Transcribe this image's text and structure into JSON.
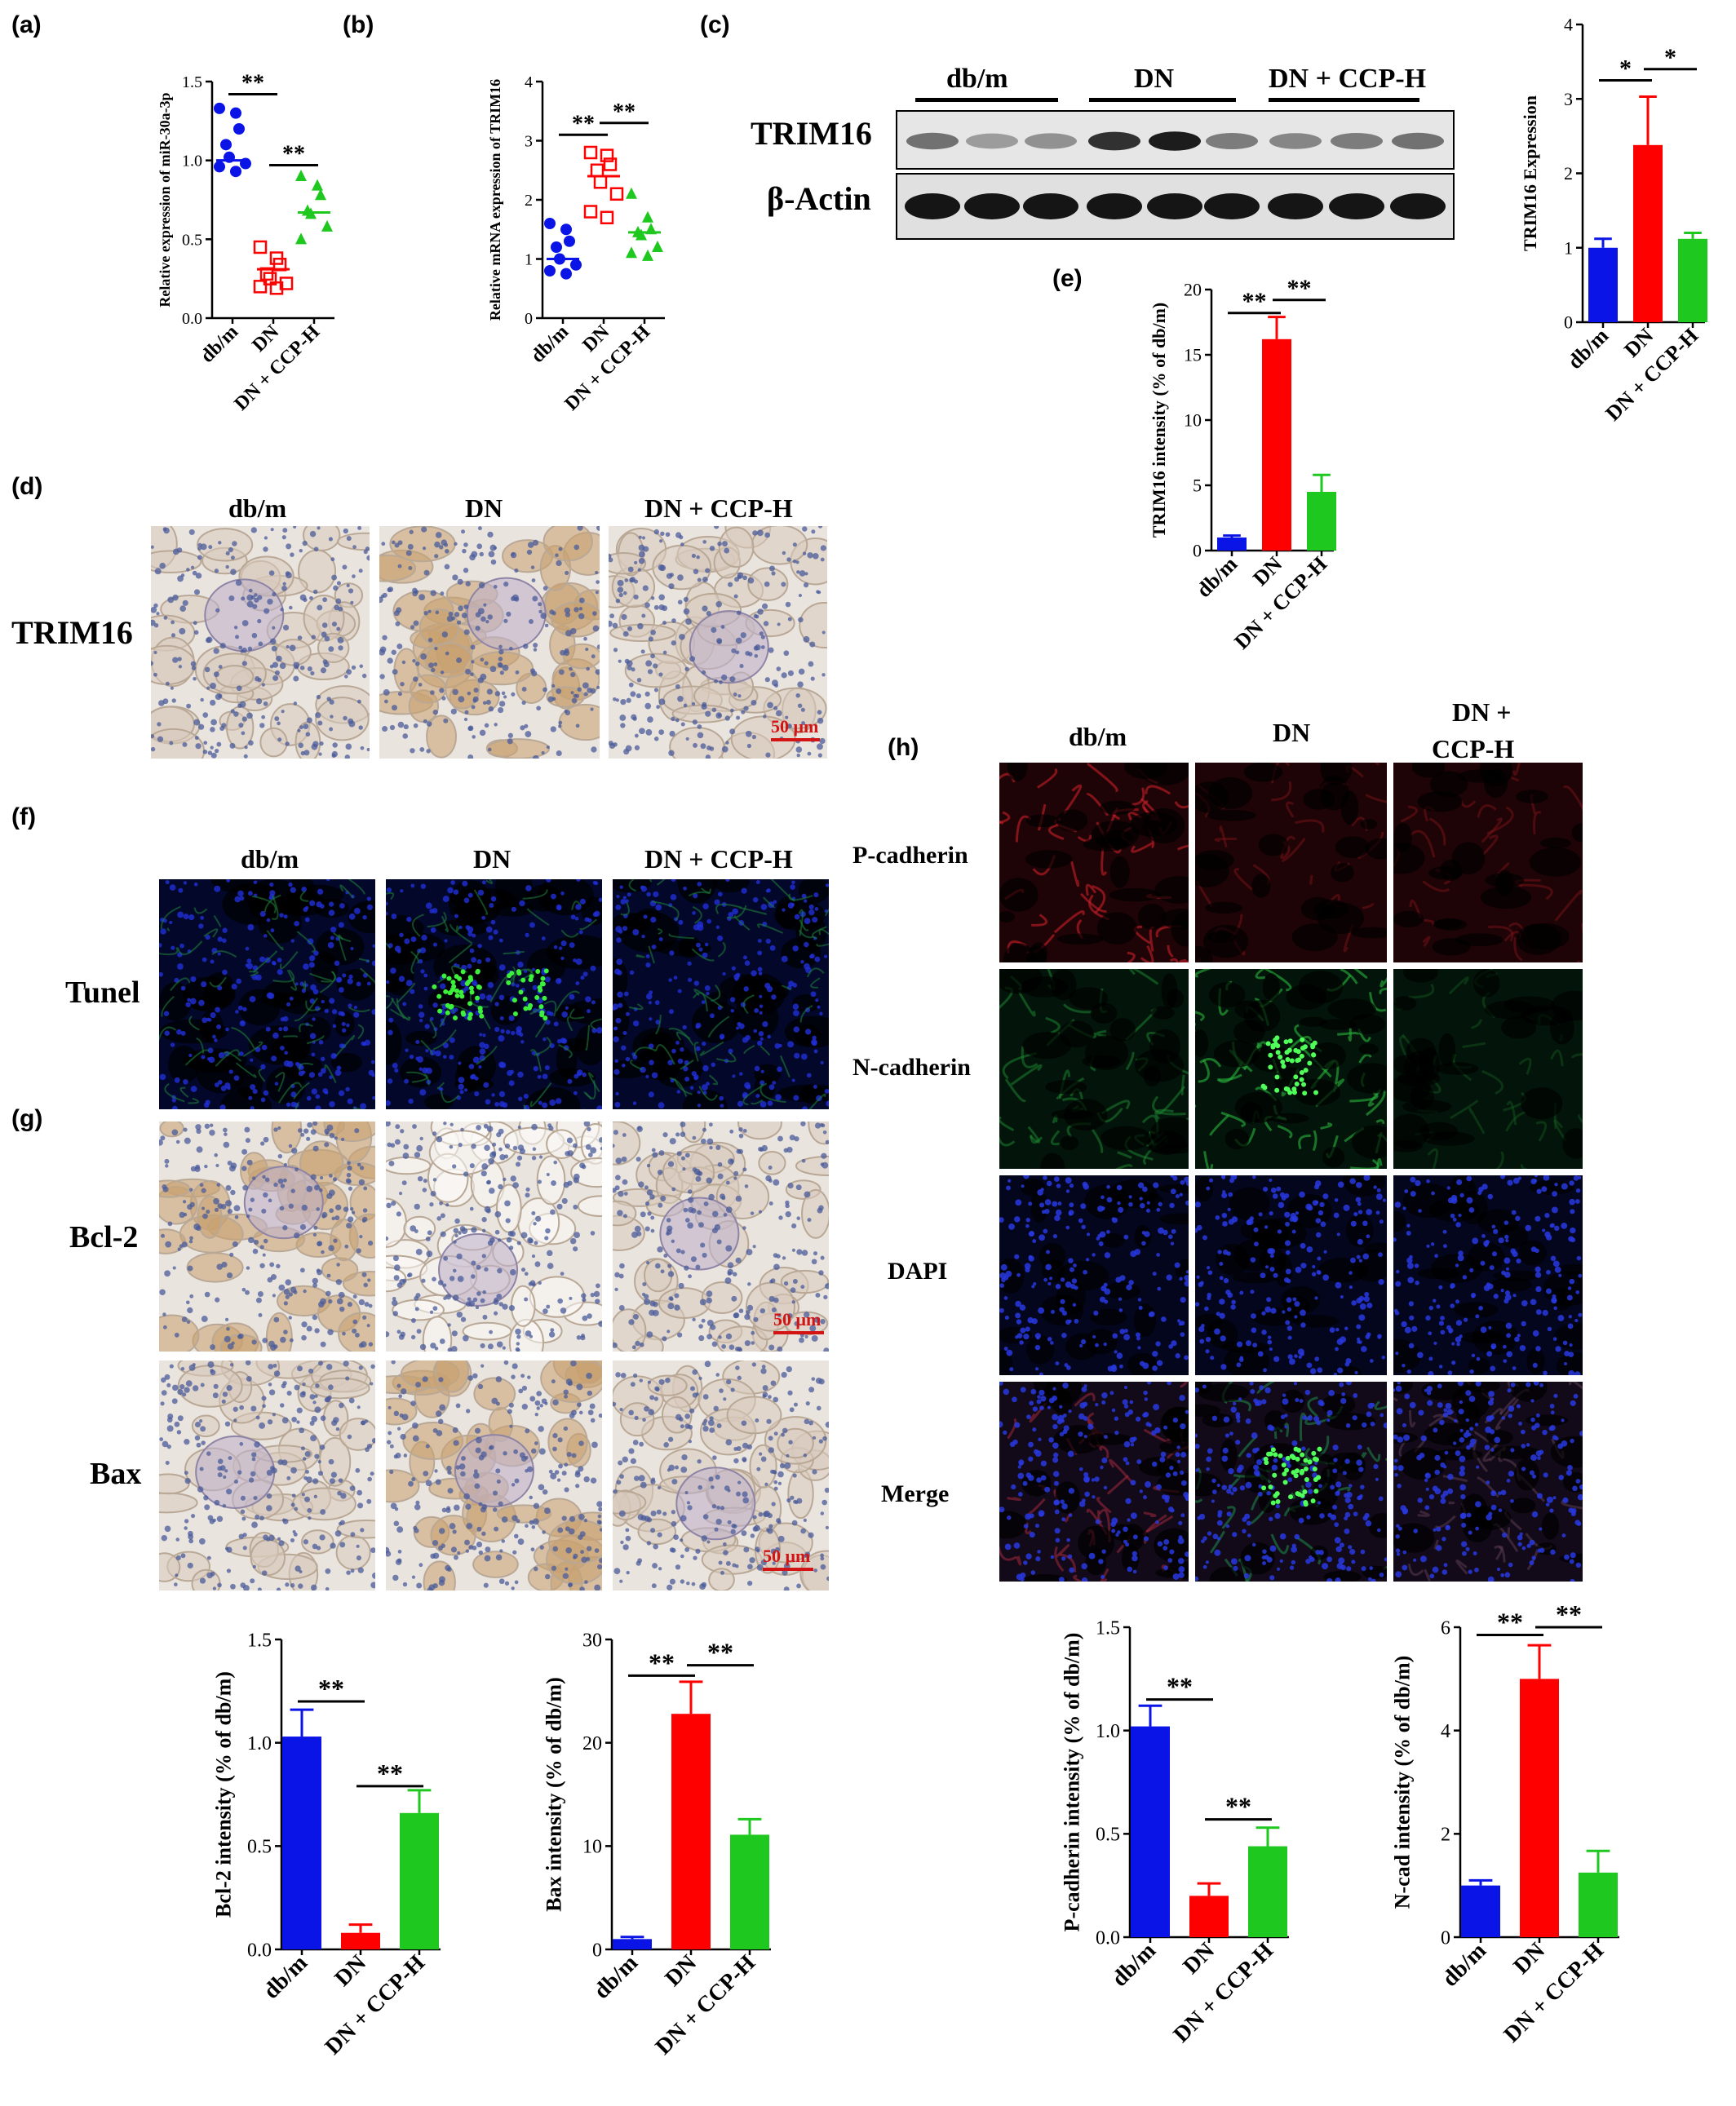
{
  "panel_labels": {
    "a": "(a)",
    "b": "(b)",
    "c": "(c)",
    "d": "(d)",
    "e": "(e)",
    "f": "(f)",
    "g": "(g)",
    "h": "(h)"
  },
  "groups": [
    "db/m",
    "DN",
    "DN + CCP-H"
  ],
  "group_h_dn_ccp": [
    "DN +",
    "CCP-H"
  ],
  "blot": {
    "groups": [
      "db/m",
      "DN",
      "DN + CCP-H"
    ],
    "bands": [
      "TRIM16",
      "β-Actin"
    ]
  },
  "ihc_d": {
    "row_label": "TRIM16",
    "scale": "50 μm"
  },
  "panel_f": {
    "row_label": "Tunel"
  },
  "panel_g": {
    "row_labels": [
      "Bcl-2",
      "Bax"
    ],
    "scale": "50 μm"
  },
  "panel_h": {
    "row_labels": [
      "P-cadherin",
      "N-cadherin",
      "DAPI",
      "Merge"
    ]
  },
  "colors": {
    "dbm": "#0a14e6",
    "dn": "#ff0000",
    "ccp": "#1ec81e"
  },
  "chart_data": [
    {
      "id": "a",
      "type": "scatter",
      "ylabel": "Relative expression of  miR-30a-3p",
      "ylim": [
        0,
        1.5
      ],
      "yticks": [
        "0.0",
        "0.5",
        "1.0",
        "1.5"
      ],
      "yticks_v": [
        0,
        0.5,
        1.0,
        1.5
      ],
      "categories": [
        "db/m",
        "DN",
        "DN + CCP-H"
      ],
      "series": [
        {
          "values": [
            1.33,
            1.3,
            1.2,
            1.1,
            1.02,
            0.98,
            0.96,
            0.93
          ],
          "mean": 1.0
        },
        {
          "values": [
            0.45,
            0.38,
            0.34,
            0.28,
            0.25,
            0.22,
            0.2,
            0.19
          ],
          "mean": 0.31
        },
        {
          "values": [
            0.9,
            0.84,
            0.78,
            0.68,
            0.66,
            0.58,
            0.5
          ],
          "mean": 0.67
        }
      ],
      "sig": [
        {
          "from": 0,
          "to": 1,
          "label": "**",
          "y": 1.42
        },
        {
          "from": 1,
          "to": 2,
          "label": "**",
          "y": 0.97
        }
      ]
    },
    {
      "id": "b",
      "type": "scatter",
      "ylabel": "Relative mRNA expression of TRIM16",
      "ylim": [
        0,
        4
      ],
      "yticks": [
        "0",
        "1",
        "2",
        "3",
        "4"
      ],
      "yticks_v": [
        0,
        1,
        2,
        3,
        4
      ],
      "categories": [
        "db/m",
        "DN",
        "DN + CCP-H"
      ],
      "series": [
        {
          "values": [
            1.6,
            1.5,
            1.3,
            1.2,
            1.0,
            0.9,
            0.8,
            0.75
          ],
          "mean": 1.0
        },
        {
          "values": [
            2.8,
            2.75,
            2.6,
            2.5,
            2.3,
            2.1,
            1.8,
            1.7
          ],
          "mean": 2.4
        },
        {
          "values": [
            2.1,
            1.7,
            1.5,
            1.45,
            1.4,
            1.2,
            1.1,
            1.05
          ],
          "mean": 1.45
        }
      ],
      "sig": [
        {
          "from": 0,
          "to": 1,
          "label": "**",
          "y": 3.1
        },
        {
          "from": 1,
          "to": 2,
          "label": "**",
          "y": 3.3
        }
      ]
    },
    {
      "id": "c2",
      "type": "bar",
      "ylabel": "TRIM16 Expression",
      "ylim": [
        0,
        4
      ],
      "yticks": [
        "0",
        "1",
        "2",
        "3",
        "4"
      ],
      "yticks_v": [
        0,
        1,
        2,
        3,
        4
      ],
      "categories": [
        "db/m",
        "DN",
        "DN + CCP-H"
      ],
      "values": [
        1.0,
        2.38,
        1.12
      ],
      "errors": [
        0.12,
        0.65,
        0.08
      ],
      "sig": [
        {
          "from": 0,
          "to": 1,
          "label": "*",
          "y": 3.25
        },
        {
          "from": 1,
          "to": 2,
          "label": "*",
          "y": 3.4
        }
      ]
    },
    {
      "id": "e",
      "type": "bar",
      "ylabel": "TRIM16 intensity (% of db/m)",
      "ylim": [
        0,
        20
      ],
      "yticks": [
        "0",
        "5",
        "10",
        "15",
        "20"
      ],
      "yticks_v": [
        0,
        5,
        10,
        15,
        20
      ],
      "categories": [
        "db/m",
        "DN",
        "DN + CCP-H"
      ],
      "values": [
        1.0,
        16.2,
        4.5
      ],
      "errors": [
        0.15,
        1.7,
        1.3
      ],
      "sig": [
        {
          "from": 0,
          "to": 1,
          "label": "**",
          "y": 18.2
        },
        {
          "from": 1,
          "to": 2,
          "label": "**",
          "y": 19.2
        }
      ]
    },
    {
      "id": "bcl2",
      "type": "bar",
      "ylabel": "Bcl-2 intensity (% of db/m)",
      "ylim": [
        0,
        1.5
      ],
      "yticks": [
        "0.0",
        "0.5",
        "1.0",
        "1.5"
      ],
      "yticks_v": [
        0,
        0.5,
        1.0,
        1.5
      ],
      "categories": [
        "db/m",
        "DN",
        "DN + CCP-H"
      ],
      "values": [
        1.03,
        0.08,
        0.66
      ],
      "errors": [
        0.13,
        0.04,
        0.11
      ],
      "sig": [
        {
          "from": 0,
          "to": 1,
          "label": "**",
          "y": 1.2
        },
        {
          "from": 1,
          "to": 2,
          "label": "**",
          "y": 0.79
        }
      ]
    },
    {
      "id": "bax",
      "type": "bar",
      "ylabel": "Bax intensity (% of db/m)",
      "ylim": [
        0,
        30
      ],
      "yticks": [
        "0",
        "10",
        "20",
        "30"
      ],
      "yticks_v": [
        0,
        10,
        20,
        30
      ],
      "categories": [
        "db/m",
        "DN",
        "DN + CCP-H"
      ],
      "values": [
        1.0,
        22.8,
        11.1
      ],
      "errors": [
        0.2,
        3.1,
        1.5
      ],
      "sig": [
        {
          "from": 0,
          "to": 1,
          "label": "**",
          "y": 26.5
        },
        {
          "from": 1,
          "to": 2,
          "label": "**",
          "y": 27.5
        }
      ]
    },
    {
      "id": "pcad",
      "type": "bar",
      "ylabel": "P-cadherin intensity (% of db/m)",
      "ylim": [
        0,
        1.5
      ],
      "yticks": [
        "0.0",
        "0.5",
        "1.0",
        "1.5"
      ],
      "yticks_v": [
        0,
        0.5,
        1.0,
        1.5
      ],
      "categories": [
        "db/m",
        "DN",
        "DN + CCP-H"
      ],
      "values": [
        1.02,
        0.2,
        0.44
      ],
      "errors": [
        0.1,
        0.06,
        0.09
      ],
      "sig": [
        {
          "from": 0,
          "to": 1,
          "label": "**",
          "y": 1.15
        },
        {
          "from": 1,
          "to": 2,
          "label": "**",
          "y": 0.57
        }
      ]
    },
    {
      "id": "ncad",
      "type": "bar",
      "ylabel": "N-cad intensity (% of db/m)",
      "ylim": [
        0,
        6
      ],
      "yticks": [
        "0",
        "2",
        "4",
        "6"
      ],
      "yticks_v": [
        0,
        2,
        4,
        6
      ],
      "categories": [
        "db/m",
        "DN",
        "DN + CCP-H"
      ],
      "values": [
        1.0,
        5.0,
        1.25
      ],
      "errors": [
        0.1,
        0.65,
        0.42
      ],
      "sig": [
        {
          "from": 0,
          "to": 1,
          "label": "**",
          "y": 5.85
        },
        {
          "from": 1,
          "to": 2,
          "label": "**",
          "y": 6.0
        }
      ]
    }
  ]
}
